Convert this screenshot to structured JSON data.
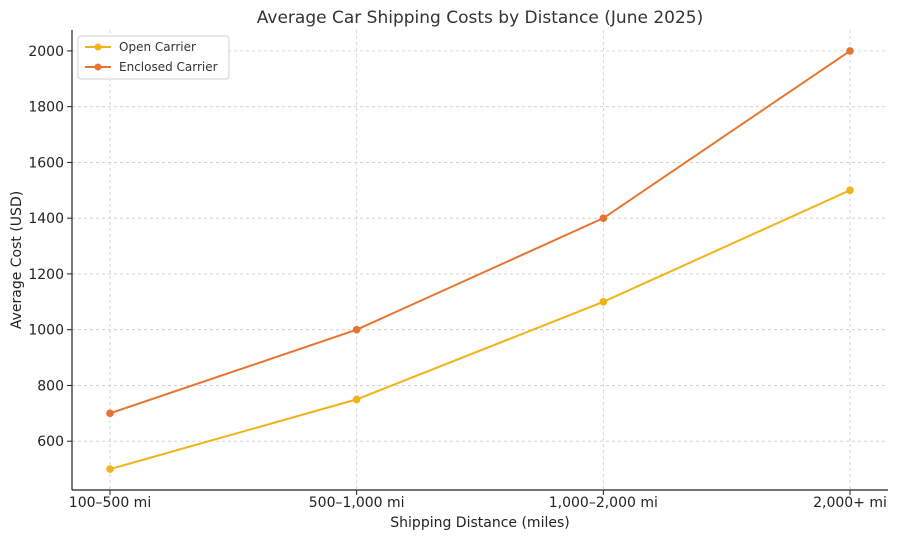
{
  "chart_data": {
    "type": "line",
    "title": "Average Car Shipping Costs by Distance (June 2025)",
    "xlabel": "Shipping Distance (miles)",
    "ylabel": "Average Cost (USD)",
    "categories": [
      "100–500 mi",
      "500–1,000 mi",
      "1,000–2,000 mi",
      "2,000+ mi"
    ],
    "yticks": [
      600,
      800,
      1000,
      1200,
      1400,
      1600,
      1800,
      2000
    ],
    "ylim": [
      425,
      2075
    ],
    "grid": true,
    "legend_position": "top-left",
    "series": [
      {
        "name": "Open Carrier",
        "color": "#f0b31a",
        "values": [
          500,
          750,
          1100,
          1500
        ]
      },
      {
        "name": "Enclosed Carrier",
        "color": "#e8742f",
        "values": [
          700,
          1000,
          1400,
          2000
        ]
      }
    ]
  }
}
